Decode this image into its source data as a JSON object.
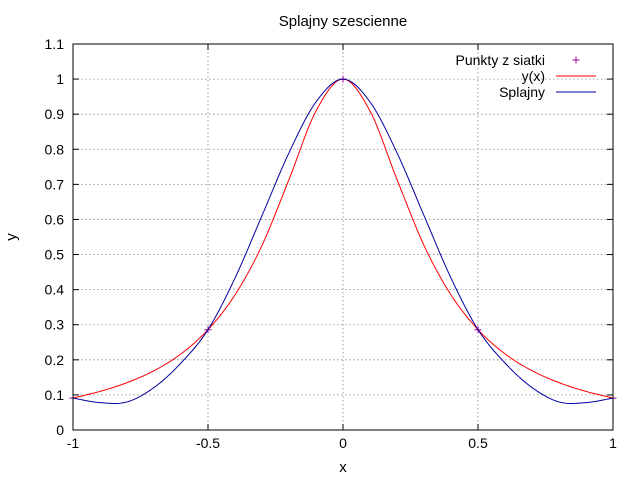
{
  "chart_data": {
    "type": "line",
    "title": "Splajny szescienne",
    "xlabel": "x",
    "ylabel": "y",
    "xlim": [
      -1,
      1
    ],
    "ylim": [
      0,
      1.1
    ],
    "grid": true,
    "legend_position": "top-right",
    "x_ticks": [
      -1,
      -0.5,
      0,
      0.5,
      1
    ],
    "x_tick_labels": [
      "-1",
      "-0.5",
      "0",
      "0.5",
      "1"
    ],
    "y_ticks": [
      0,
      0.1,
      0.2,
      0.3,
      0.4,
      0.5,
      0.6,
      0.7,
      0.8,
      0.9,
      1,
      1.1
    ],
    "y_tick_labels": [
      "0",
      "0.1",
      "0.2",
      "0.3",
      "0.4",
      "0.5",
      "0.6",
      "0.7",
      "0.8",
      "0.9",
      "1",
      "1.1"
    ],
    "series": [
      {
        "name": "Punkty z siatki",
        "style": "points",
        "marker": "+",
        "color": "#a000a0",
        "x": [
          -1,
          -0.5,
          0,
          0.5,
          1
        ],
        "y": [
          0.0909,
          0.2857,
          1.0,
          0.2857,
          0.0909
        ]
      },
      {
        "name": "y(x)",
        "style": "line",
        "color": "#ff0000",
        "x": [
          -1,
          -0.9,
          -0.8,
          -0.7,
          -0.6,
          -0.5,
          -0.4,
          -0.3,
          -0.2,
          -0.1,
          0,
          0.1,
          0.2,
          0.3,
          0.4,
          0.5,
          0.6,
          0.7,
          0.8,
          0.9,
          1
        ],
        "y": [
          0.091,
          0.11,
          0.135,
          0.169,
          0.217,
          0.286,
          0.385,
          0.526,
          0.714,
          0.909,
          1.0,
          0.909,
          0.714,
          0.526,
          0.385,
          0.286,
          0.217,
          0.169,
          0.135,
          0.11,
          0.091
        ]
      },
      {
        "name": "Splajny",
        "style": "line",
        "color": "#0000a0",
        "x": [
          -1,
          -0.9,
          -0.8,
          -0.7,
          -0.6,
          -0.5,
          -0.4,
          -0.3,
          -0.2,
          -0.1,
          0,
          0.1,
          0.2,
          0.3,
          0.4,
          0.5,
          0.6,
          0.7,
          0.8,
          0.9,
          1
        ],
        "y": [
          0.091,
          0.078,
          0.08,
          0.121,
          0.191,
          0.286,
          0.433,
          0.611,
          0.79,
          0.935,
          1.0,
          0.935,
          0.79,
          0.611,
          0.433,
          0.286,
          0.191,
          0.121,
          0.08,
          0.078,
          0.091
        ]
      }
    ]
  }
}
